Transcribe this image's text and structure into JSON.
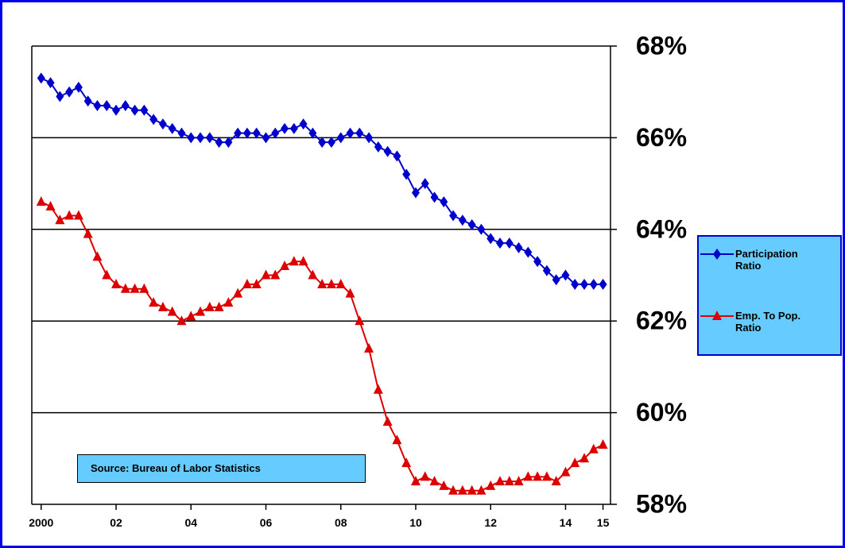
{
  "chart_data": {
    "type": "line",
    "annotation": "Source: Bureau of Labor Statistics",
    "x": [
      2000.0,
      2000.25,
      2000.5,
      2000.75,
      2001.0,
      2001.25,
      2001.5,
      2001.75,
      2002.0,
      2002.25,
      2002.5,
      2002.75,
      2003.0,
      2003.25,
      2003.5,
      2003.75,
      2004.0,
      2004.25,
      2004.5,
      2004.75,
      2005.0,
      2005.25,
      2005.5,
      2005.75,
      2006.0,
      2006.25,
      2006.5,
      2006.75,
      2007.0,
      2007.25,
      2007.5,
      2007.75,
      2008.0,
      2008.25,
      2008.5,
      2008.75,
      2009.0,
      2009.25,
      2009.5,
      2009.75,
      2010.0,
      2010.25,
      2010.5,
      2010.75,
      2011.0,
      2011.25,
      2011.5,
      2011.75,
      2012.0,
      2012.25,
      2012.5,
      2012.75,
      2013.0,
      2013.25,
      2013.5,
      2013.75,
      2014.0,
      2014.25,
      2014.5,
      2014.75,
      2015.0
    ],
    "series": [
      {
        "name": "Participation Ratio",
        "color": "#0000cc",
        "marker": "diamond",
        "values": [
          67.3,
          67.2,
          66.9,
          67.0,
          67.1,
          66.8,
          66.7,
          66.7,
          66.6,
          66.7,
          66.6,
          66.6,
          66.4,
          66.3,
          66.2,
          66.1,
          66.0,
          66.0,
          66.0,
          65.9,
          65.9,
          66.1,
          66.1,
          66.1,
          66.0,
          66.1,
          66.2,
          66.2,
          66.3,
          66.1,
          65.9,
          65.9,
          66.0,
          66.1,
          66.1,
          66.0,
          65.8,
          65.7,
          65.6,
          65.2,
          64.8,
          65.0,
          64.7,
          64.6,
          64.3,
          64.2,
          64.1,
          64.0,
          63.8,
          63.7,
          63.7,
          63.6,
          63.5,
          63.3,
          63.1,
          62.9,
          63.0,
          62.8,
          62.8,
          62.8,
          62.8
        ]
      },
      {
        "name": "Emp. To Pop. Ratio",
        "color": "#dd0000",
        "marker": "triangle",
        "values": [
          64.6,
          64.5,
          64.2,
          64.3,
          64.3,
          63.9,
          63.4,
          63.0,
          62.8,
          62.7,
          62.7,
          62.7,
          62.4,
          62.3,
          62.2,
          62.0,
          62.1,
          62.2,
          62.3,
          62.3,
          62.4,
          62.6,
          62.8,
          62.8,
          63.0,
          63.0,
          63.2,
          63.3,
          63.3,
          63.0,
          62.8,
          62.8,
          62.8,
          62.6,
          62.0,
          61.4,
          60.5,
          59.8,
          59.4,
          58.9,
          58.5,
          58.6,
          58.5,
          58.4,
          58.3,
          58.3,
          58.3,
          58.3,
          58.4,
          58.5,
          58.5,
          58.5,
          58.6,
          58.6,
          58.6,
          58.5,
          58.7,
          58.9,
          59.0,
          59.2,
          59.3
        ]
      }
    ],
    "xlim": [
      1999.75,
      2015.2
    ],
    "xticks": [
      {
        "value": 2000,
        "label": "2000"
      },
      {
        "value": 2002,
        "label": "02"
      },
      {
        "value": 2004,
        "label": "04"
      },
      {
        "value": 2006,
        "label": "06"
      },
      {
        "value": 2008,
        "label": "08"
      },
      {
        "value": 2010,
        "label": "10"
      },
      {
        "value": 2012,
        "label": "12"
      },
      {
        "value": 2014,
        "label": "14"
      },
      {
        "value": 2015,
        "label": "15"
      }
    ],
    "ylim": [
      58,
      68
    ],
    "yticks": [
      {
        "value": 58,
        "label": "58%"
      },
      {
        "value": 60,
        "label": "60%"
      },
      {
        "value": 62,
        "label": "62%"
      },
      {
        "value": 64,
        "label": "64%"
      },
      {
        "value": 66,
        "label": "66%"
      },
      {
        "value": 68,
        "label": "68%"
      }
    ],
    "grid": true,
    "y_axis_side": "right",
    "legend": "right"
  }
}
